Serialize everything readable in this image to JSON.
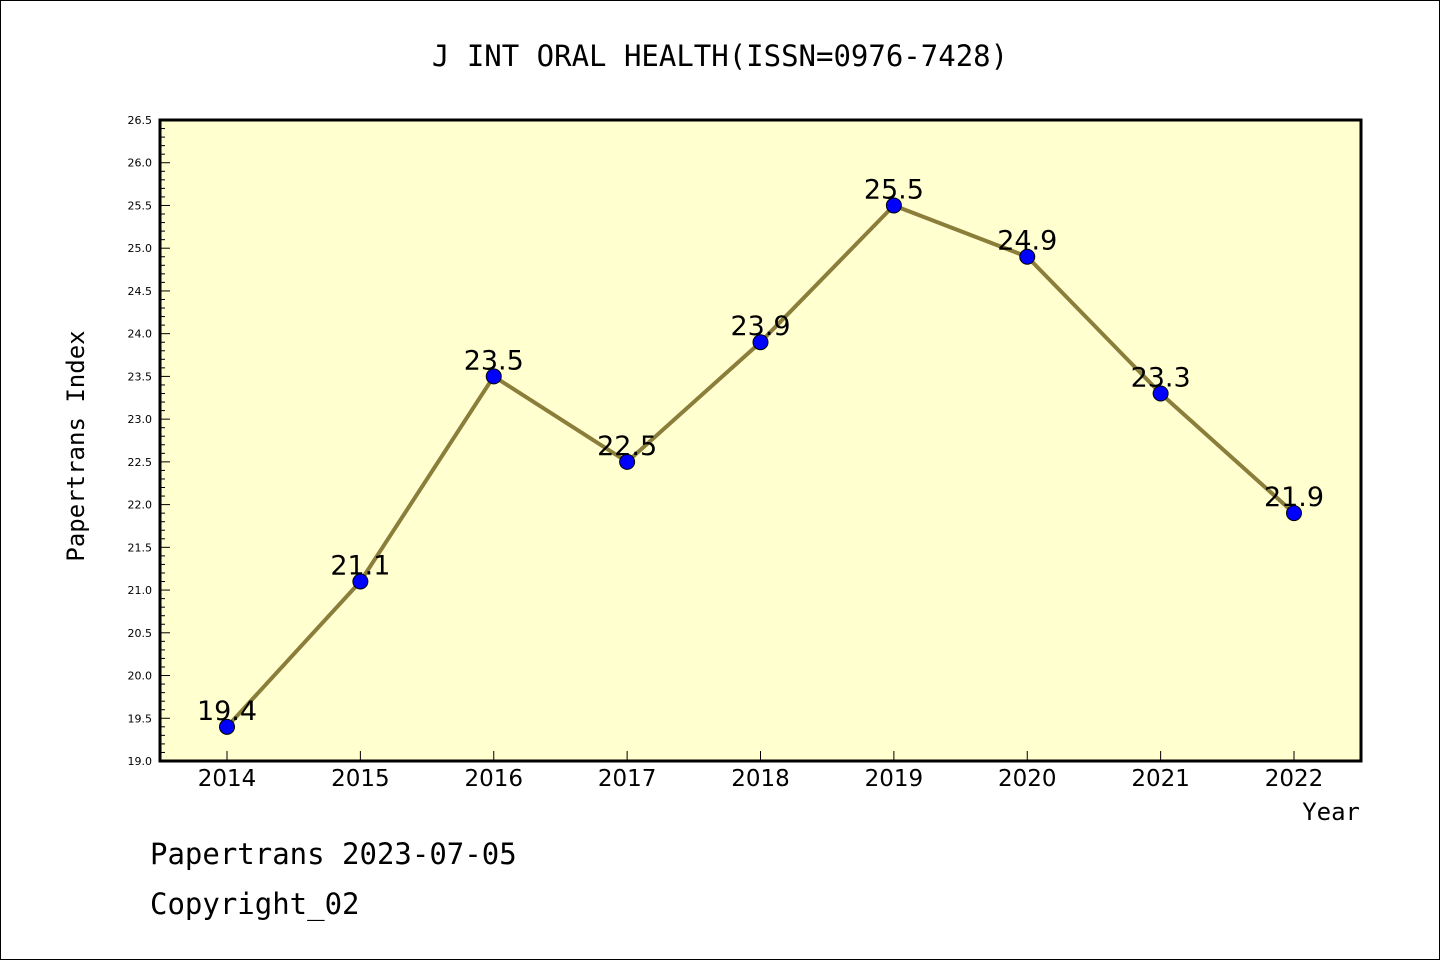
{
  "footer": {
    "line1": "Papertrans 2023-07-05",
    "line2": "Copyright_02"
  },
  "chart_data": {
    "type": "line",
    "title": "J INT ORAL HEALTH(ISSN=0976-7428)",
    "xlabel": "Year",
    "ylabel": "Papertrans Index",
    "categories": [
      "2014",
      "2015",
      "2016",
      "2017",
      "2018",
      "2019",
      "2020",
      "2021",
      "2022"
    ],
    "series": [
      {
        "values": [
          19.4,
          21.1,
          23.5,
          22.5,
          23.9,
          25.5,
          24.9,
          23.3,
          21.9
        ],
        "labels": [
          "19.4",
          "21.1",
          "23.5",
          "22.5",
          "23.9",
          "25.5",
          "24.9",
          "23.3",
          "21.9"
        ]
      }
    ],
    "ylim": [
      19.0,
      26.5
    ],
    "yticks": [
      "19.0",
      "19.5",
      "20.0",
      "20.5",
      "21.0",
      "21.5",
      "22.0",
      "22.5",
      "23.0",
      "23.5",
      "24.0",
      "24.5",
      "25.0",
      "25.5",
      "26.0",
      "26.5"
    ],
    "grid": false,
    "legend": "none",
    "colors": {
      "plot_background": "#ffffd0",
      "line": "#8b7d3a",
      "marker": "#0000ff"
    }
  }
}
